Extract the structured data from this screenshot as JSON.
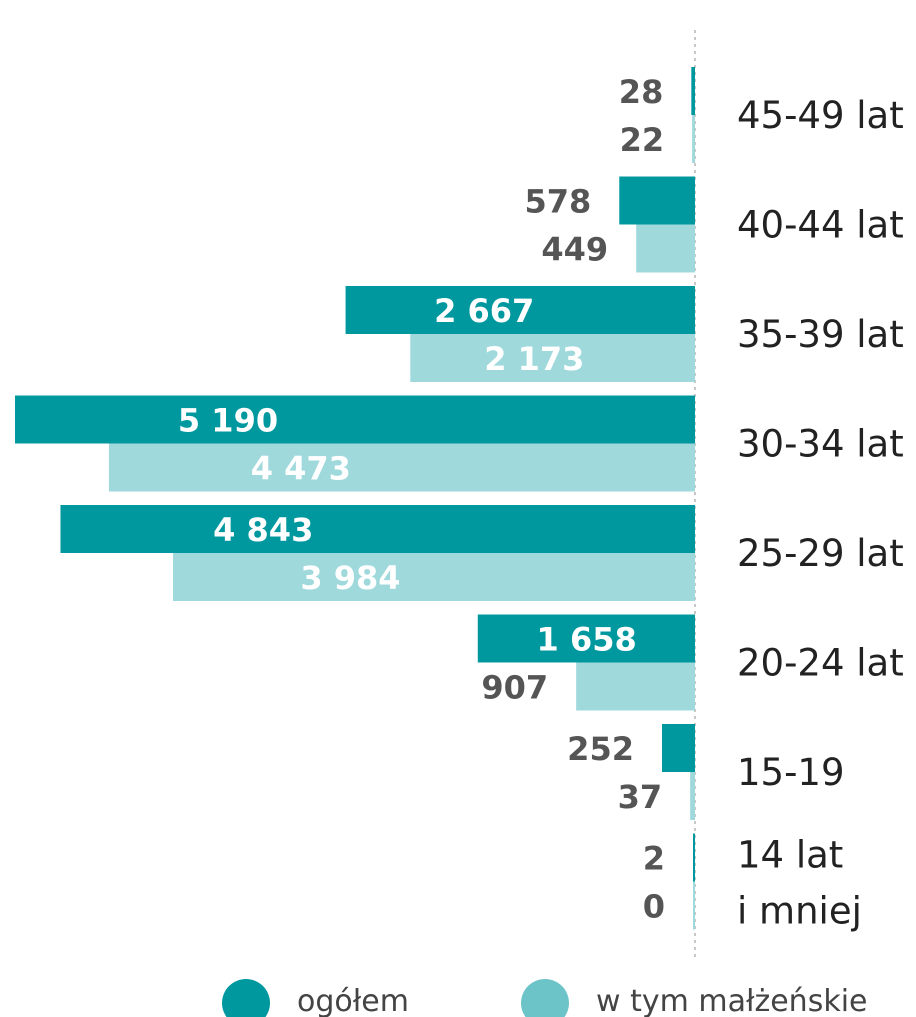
{
  "chart_data": {
    "type": "bar",
    "orientation": "horizontal",
    "categories": [
      [
        "45-49 lat"
      ],
      [
        "40-44 lat"
      ],
      [
        "35-39 lat"
      ],
      [
        "30-34 lat"
      ],
      [
        "25-29 lat"
      ],
      [
        "20-24 lat"
      ],
      [
        "15-19"
      ],
      [
        "14 lat",
        "i mniej"
      ]
    ],
    "series": [
      {
        "name": "ogółem",
        "color": "#00989f",
        "values": [
          28,
          578,
          2667,
          5190,
          4843,
          1658,
          252,
          2
        ]
      },
      {
        "name": "w tym małżeńskie",
        "color": "#9fd9dc",
        "values": [
          22,
          449,
          2173,
          4473,
          3984,
          907,
          37,
          0
        ]
      }
    ],
    "value_labels": [
      [
        "28",
        "578",
        "2 667",
        "5 190",
        "4 843",
        "1 658",
        "252",
        "2"
      ],
      [
        "22",
        "449",
        "2 173",
        "4 473",
        "3 984",
        "907",
        "37",
        "0"
      ]
    ],
    "xlim": [
      0,
      5190
    ],
    "grid": false,
    "legend_position": "bottom",
    "legend": [
      {
        "label": "ogółem",
        "color": "#00989f"
      },
      {
        "label": "w tym małżeńskie",
        "color": "#6cc4c9"
      }
    ]
  }
}
